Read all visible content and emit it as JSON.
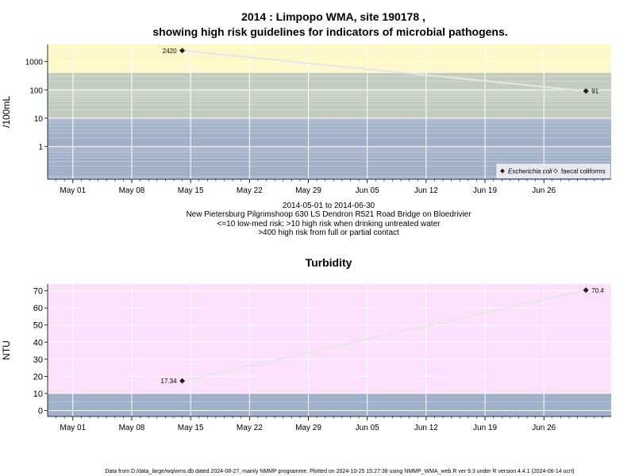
{
  "title_line1": "2014 : Limpopo WMA, site 190178 ,",
  "title_line2": "showing high risk guidelines for indicators of microbial pathogens.",
  "subtitle_lines": [
    "2014-05-01 to 2014-06-30",
    "New Pietersburg Pilgrimshoop 630 LS Dendron R521 Road Bridge on Bloedrivier",
    "<=10 low-med risk; >10 high risk when drinking untreated water",
    ">400 high risk from full or partial contact"
  ],
  "footer": "Data from D:/data_large/wq/wms.db dated 2024-08-27, mainly NMMP programme. Plotted on 2024-10-25 15:27:38 using NMMP_WMA_web.R ver 9.3 under R version 4.4.1 (2024-06-14 ucrt)",
  "colors": {
    "low_band": "#a0b0c8",
    "mid_band": "#c4ccc0",
    "high_band": "#fef8c8",
    "turbidity_band": "#fde0fc",
    "series_line": "#e6e6e6",
    "grid": "#ffffff",
    "marker": "#202020"
  },
  "chart_data": [
    {
      "type": "line",
      "title": "",
      "ylabel": "/100mL",
      "xlabel": "",
      "x_ticks": [
        "May 01",
        "May 08",
        "May 15",
        "May 22",
        "May 29",
        "Jun 05",
        "Jun 12",
        "Jun 19",
        "Jun 26"
      ],
      "x_tick_dates": [
        "2014-05-01",
        "2014-05-08",
        "2014-05-15",
        "2014-05-22",
        "2014-05-29",
        "2014-06-05",
        "2014-06-12",
        "2014-06-19",
        "2014-06-26"
      ],
      "xlim": [
        "2014-04-28",
        "2014-07-04"
      ],
      "y_scale": "log10",
      "ylim": [
        0.07,
        4000
      ],
      "y_ticks": [
        1,
        10,
        100,
        1000
      ],
      "y_tick_labels": [
        "1",
        "10",
        "100",
        "1000"
      ],
      "bands": [
        {
          "from": 0.07,
          "to": 10,
          "color": "#a0b0c8"
        },
        {
          "from": 10,
          "to": 400,
          "color": "#c4ccc0"
        },
        {
          "from": 400,
          "to": 4000,
          "color": "#fef8c8"
        }
      ],
      "series": [
        {
          "name": "Escherichia coli",
          "marker": "filled-diamond",
          "points": [
            {
              "x": "2014-05-14",
              "y": 2420,
              "label": "2420"
            },
            {
              "x": "2014-07-01",
              "y": 91,
              "label": "91"
            }
          ]
        }
      ],
      "legend": {
        "placement": "bottom-right",
        "entries": [
          {
            "label": "Escherichia coli",
            "marker": "filled-diamond",
            "italic": true
          },
          {
            "label": "faecal coliforms",
            "marker": "open-diamond",
            "italic": false
          }
        ]
      },
      "grid": true
    },
    {
      "type": "line",
      "title": "Turbidity",
      "ylabel": "NTU",
      "xlabel": "",
      "x_ticks": [
        "May 01",
        "May 08",
        "May 15",
        "May 22",
        "May 29",
        "Jun 05",
        "Jun 12",
        "Jun 19",
        "Jun 26"
      ],
      "x_tick_dates": [
        "2014-05-01",
        "2014-05-08",
        "2014-05-15",
        "2014-05-22",
        "2014-05-29",
        "2014-06-05",
        "2014-06-12",
        "2014-06-19",
        "2014-06-26"
      ],
      "xlim": [
        "2014-04-28",
        "2014-07-04"
      ],
      "y_scale": "linear",
      "ylim": [
        -3.5,
        74
      ],
      "y_ticks": [
        0,
        10,
        20,
        30,
        40,
        50,
        60,
        70
      ],
      "y_tick_labels": [
        "0",
        "10",
        "20",
        "30",
        "40",
        "50",
        "60",
        "70"
      ],
      "bands": [
        {
          "from": -3.5,
          "to": 10,
          "color": "#a0b0c8"
        },
        {
          "from": 10,
          "to": 74,
          "color": "#fde0fc"
        }
      ],
      "series": [
        {
          "name": "",
          "marker": "filled-diamond",
          "points": [
            {
              "x": "2014-05-14",
              "y": 17.34,
              "label": "17.34"
            },
            {
              "x": "2014-07-01",
              "y": 70.4,
              "label": "70.4"
            }
          ]
        }
      ],
      "grid": true
    }
  ]
}
